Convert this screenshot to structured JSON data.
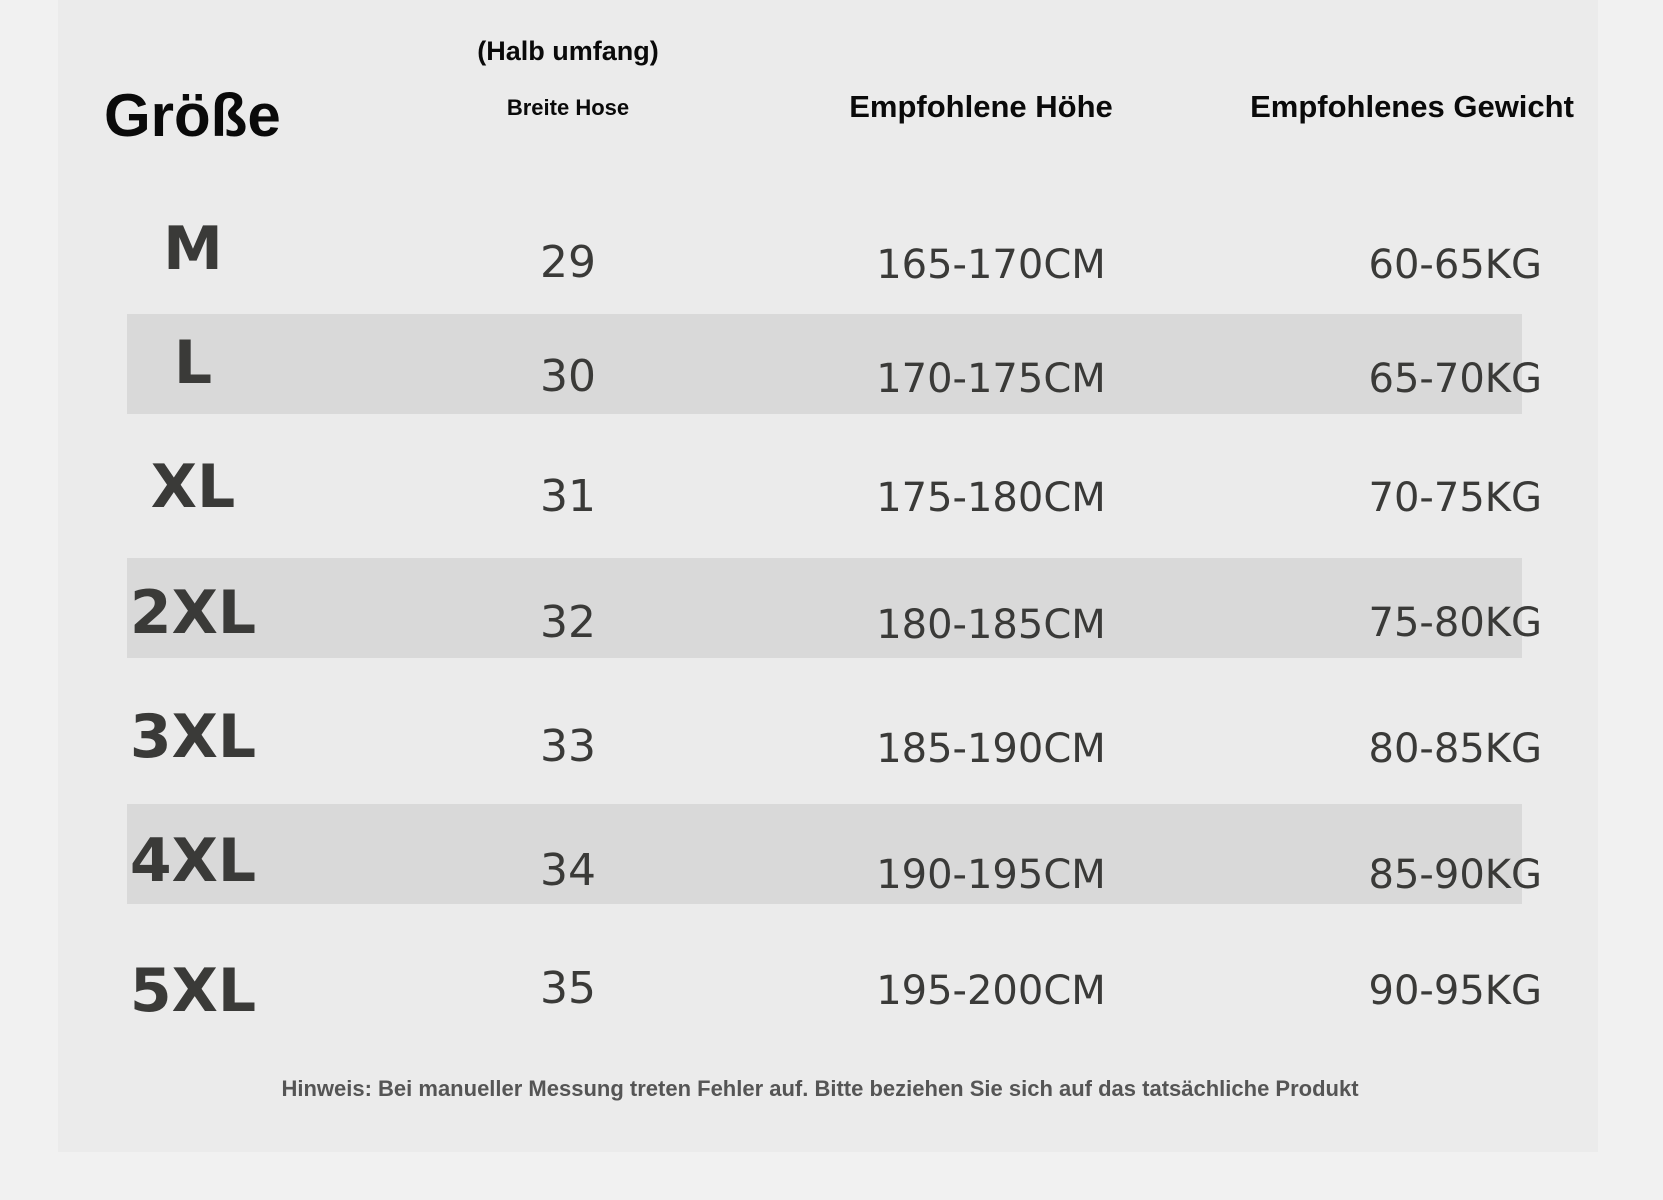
{
  "header": {
    "size": "Größe",
    "waist_line1": "(Halb umfang)",
    "waist_line2": "Breite Hose",
    "height": "Empfohlene Höhe",
    "weight": "Empfohlenes Gewicht"
  },
  "rows": [
    {
      "size": "M",
      "waist": "29",
      "height": "165-170CM",
      "weight": "60-65KG",
      "shaded": false
    },
    {
      "size": "L",
      "waist": "30",
      "height": "170-175CM",
      "weight": "65-70KG",
      "shaded": true
    },
    {
      "size": "XL",
      "waist": "31",
      "height": "175-180CM",
      "weight": "70-75KG",
      "shaded": false
    },
    {
      "size": "2XL",
      "waist": "32",
      "height": "180-185CM",
      "weight": "75-80KG",
      "shaded": true
    },
    {
      "size": "3XL",
      "waist": "33",
      "height": "185-190CM",
      "weight": "80-85KG",
      "shaded": false
    },
    {
      "size": "4XL",
      "waist": "34",
      "height": "190-195CM",
      "weight": "85-90KG",
      "shaded": true
    },
    {
      "size": "5XL",
      "waist": "35",
      "height": "195-200CM",
      "weight": "90-95KG",
      "shaded": false
    }
  ],
  "note": "Hinweis: Bei manueller Messung treten Fehler auf. Bitte beziehen Sie sich auf das tatsächliche Produkt",
  "colors": {
    "page_background": "#f1f1f1",
    "panel_background": "#ebebeb",
    "band_background": "#d9d9d9",
    "value_text": "#3a3a38",
    "header_text": "#0a0a0a"
  }
}
